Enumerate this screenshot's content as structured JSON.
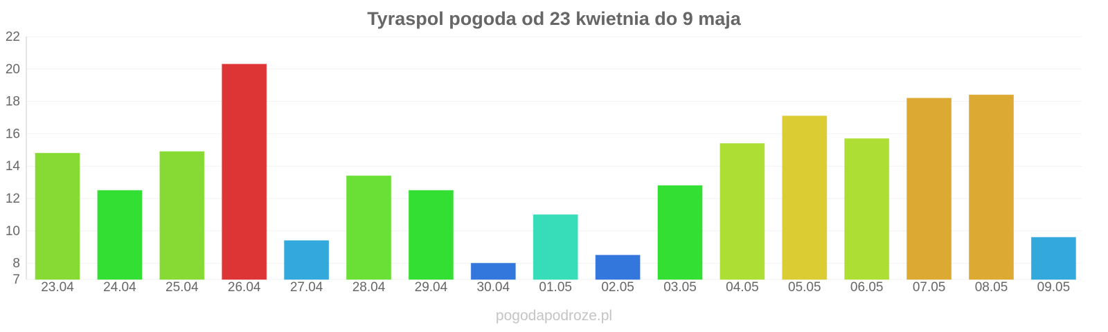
{
  "watermark": "pogodapodroze.pl",
  "chart_data": {
    "type": "bar",
    "title": "Tyraspol pogoda od 23 kwietnia do 9 maja",
    "xlabel": "",
    "ylabel": "",
    "ylim": [
      7,
      22
    ],
    "yticks": [
      7,
      8,
      10,
      12,
      14,
      16,
      18,
      20,
      22
    ],
    "grid": true,
    "categories": [
      "23.04",
      "24.04",
      "25.04",
      "26.04",
      "27.04",
      "28.04",
      "29.04",
      "30.04",
      "01.05",
      "02.05",
      "03.05",
      "04.05",
      "05.05",
      "06.05",
      "07.05",
      "08.05",
      "09.05"
    ],
    "values": [
      14.8,
      12.5,
      14.9,
      20.3,
      9.4,
      13.4,
      12.5,
      8.0,
      11.0,
      8.5,
      12.8,
      15.4,
      17.1,
      15.7,
      18.2,
      18.4,
      9.6
    ],
    "colors": [
      "#86da33",
      "#33df33",
      "#86da33",
      "#dd3535",
      "#33a8dd",
      "#6adf36",
      "#33df33",
      "#3377dd",
      "#36ddb8",
      "#3377dd",
      "#33df33",
      "#acde33",
      "#dccc33",
      "#acde33",
      "#dcaa33",
      "#dcaa33",
      "#33a8dd"
    ]
  }
}
